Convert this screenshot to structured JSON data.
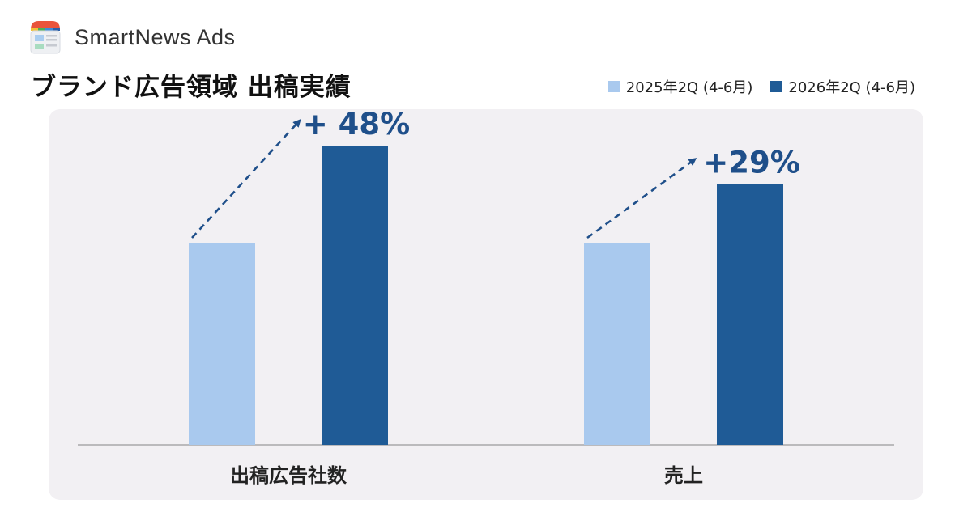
{
  "brand": {
    "name": "SmartNews Ads",
    "logo_icon": "smartnews-logo-icon"
  },
  "page": {
    "title": "ブランド広告領域 出稿実績"
  },
  "colors": {
    "series_2025": "#a9c9ee",
    "series_2026": "#1f5b96",
    "growth": "#1f4f8a",
    "panel": "#f2f0f3",
    "axis": "#9a9a9a"
  },
  "chart_data": {
    "type": "bar",
    "title": "ブランド広告領域 出稿実績",
    "categories": [
      "出稿広告社数",
      "売上"
    ],
    "series": [
      {
        "name": "2025年2Q (4-6月)",
        "values": [
          100,
          100
        ]
      },
      {
        "name": "2026年2Q (4-6月)",
        "values": [
          148,
          129
        ]
      }
    ],
    "annotations": [
      "+ 48%",
      "+29%"
    ],
    "ylim": [
      0,
      160
    ],
    "grid": false,
    "legend": "top-right",
    "y_axis_visible": false
  }
}
